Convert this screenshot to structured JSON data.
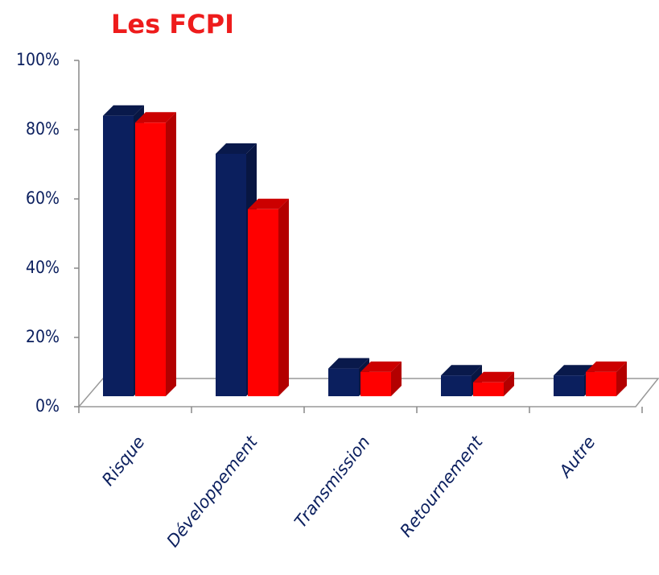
{
  "chart_data": {
    "type": "bar3d",
    "title": "Les FCPI",
    "categories": [
      "Risque",
      "Développement",
      "Transmission",
      "Retournement",
      "Autre"
    ],
    "series": [
      {
        "color": "#0b1f5e",
        "values": [
          81,
          70,
          8,
          6,
          6
        ]
      },
      {
        "color": "#ff0000",
        "values": [
          79,
          54,
          7,
          4,
          7
        ]
      }
    ],
    "ylim": [
      0,
      100
    ],
    "yticks": [
      {
        "value": 0,
        "label": "0%"
      },
      {
        "value": 20,
        "label": "20%"
      },
      {
        "value": 40,
        "label": "40%"
      },
      {
        "value": 60,
        "label": "60%"
      },
      {
        "value": 80,
        "label": "80%"
      },
      {
        "value": 100,
        "label": "100%"
      }
    ]
  }
}
